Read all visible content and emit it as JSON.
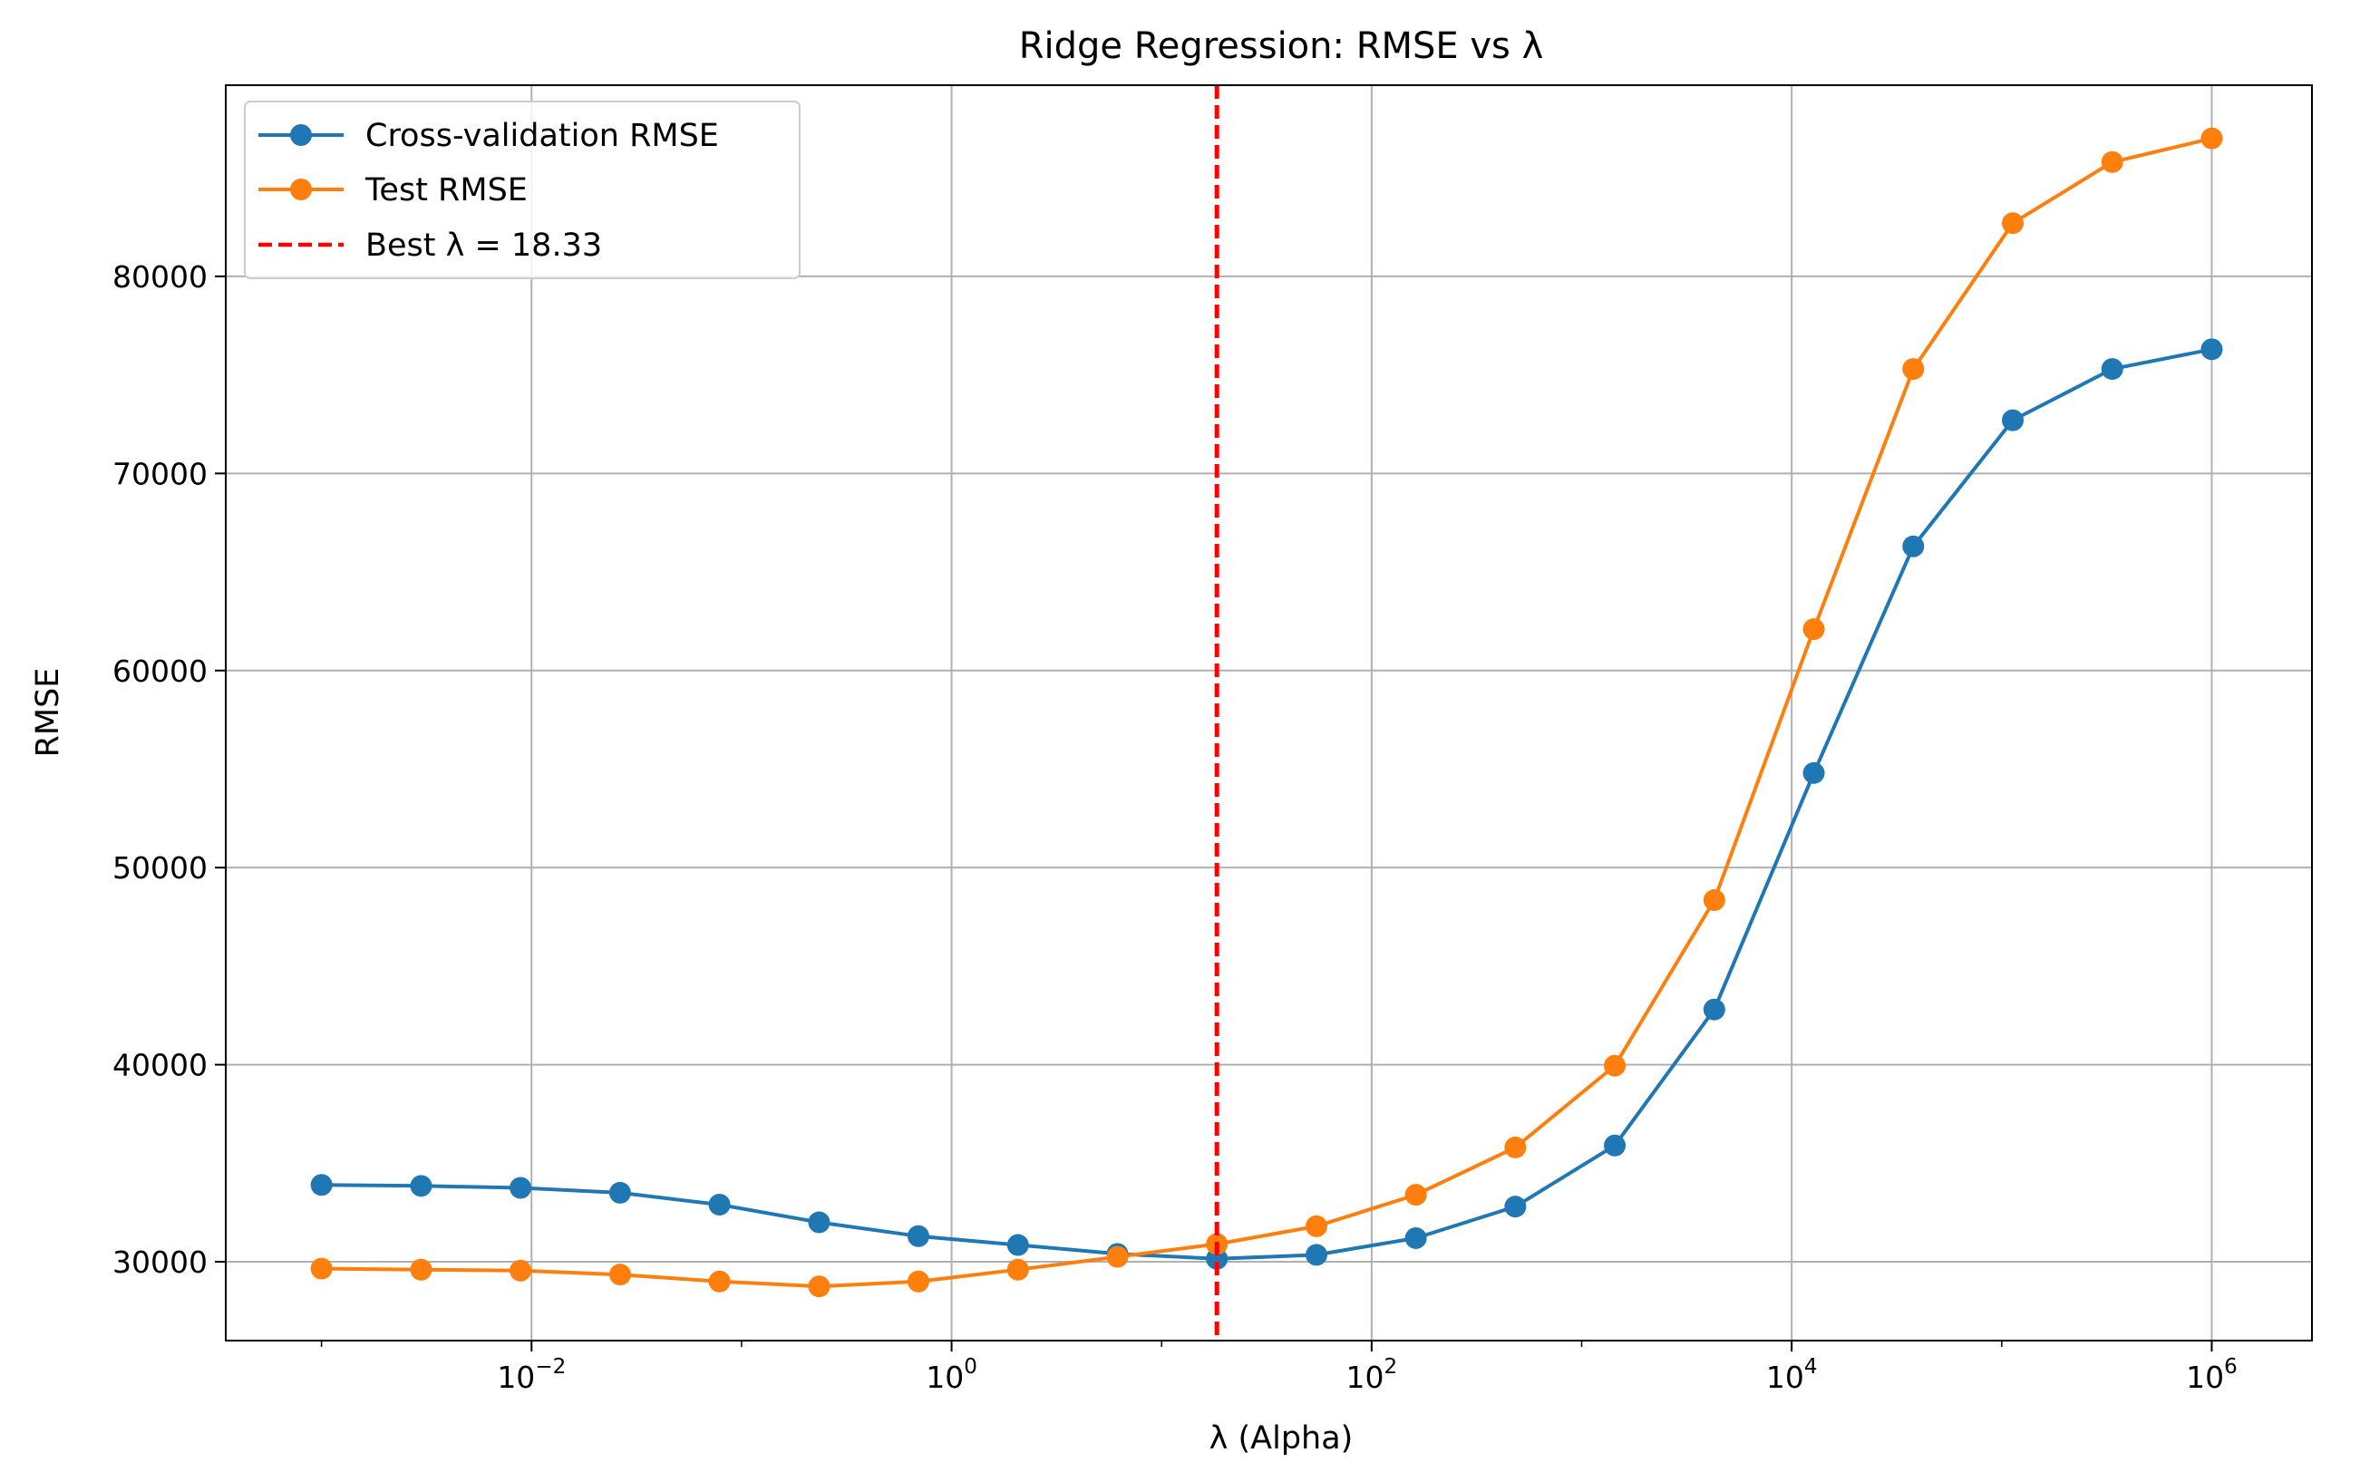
{
  "chart_data": {
    "type": "line",
    "title": "Ridge Regression: RMSE vs λ",
    "xlabel": "λ (Alpha)",
    "ylabel": "RMSE",
    "x_scale": "log",
    "xlim": [
      0.00035,
      3000000
    ],
    "ylim": [
      26000,
      89700
    ],
    "grid": true,
    "legend_position": "top-left",
    "x_ticks": [
      {
        "value": 0.01,
        "base": "10",
        "exp": "−2"
      },
      {
        "value": 1,
        "base": "10",
        "exp": "0"
      },
      {
        "value": 100,
        "base": "10",
        "exp": "2"
      },
      {
        "value": 10000,
        "base": "10",
        "exp": "4"
      },
      {
        "value": 1000000,
        "base": "10",
        "exp": "6"
      }
    ],
    "y_ticks": [
      {
        "value": 30000,
        "label": "30000"
      },
      {
        "value": 40000,
        "label": "40000"
      },
      {
        "value": 50000,
        "label": "50000"
      },
      {
        "value": 60000,
        "label": "60000"
      },
      {
        "value": 70000,
        "label": "70000"
      },
      {
        "value": 80000,
        "label": "80000"
      }
    ],
    "x": [
      0.001,
      0.00298,
      0.00886,
      0.0264,
      0.0785,
      0.234,
      0.695,
      2.07,
      6.16,
      18.33,
      54.6,
      162.4,
      483.3,
      1438,
      4281,
      12743,
      37927,
      112884,
      335982,
      1000000
    ],
    "series": [
      {
        "name": "Cross-validation RMSE",
        "color": "#1f77b4",
        "values": [
          33900,
          33850,
          33750,
          33500,
          32900,
          32000,
          31300,
          30850,
          30400,
          30150,
          30350,
          31200,
          32800,
          35900,
          42800,
          54800,
          66300,
          72700,
          75300,
          76300
        ]
      },
      {
        "name": "Test RMSE",
        "color": "#ff7f0e",
        "values": [
          29650,
          29600,
          29550,
          29350,
          29000,
          28750,
          29000,
          29600,
          30250,
          30900,
          31800,
          33400,
          35800,
          39950,
          48350,
          62100,
          75300,
          82700,
          85800,
          87000
        ]
      }
    ],
    "vline": {
      "x": 18.33,
      "label": "Best λ = 18.33",
      "color": "#ff0000"
    }
  }
}
